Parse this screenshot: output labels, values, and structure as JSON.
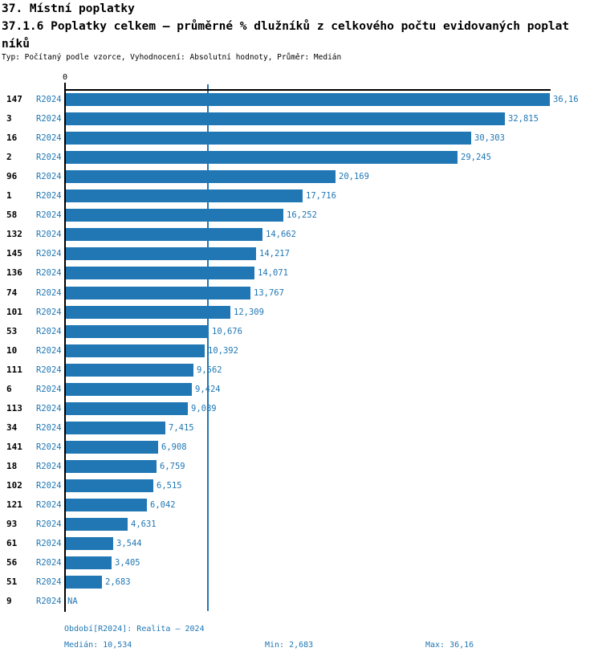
{
  "header": {
    "title_line1": "37. Místní poplatky",
    "title_line2": "37.1.6 Poplatky celkem – průměrné % dlužníků z celkového počtu evidovaných poplat",
    "title_line3": "níků",
    "subtitle": "Typ: Počítaný podle vzorce, Vyhodnocení: Absolutní hodnoty, Průměr: Medián"
  },
  "chart_data": {
    "type": "bar",
    "orientation": "horizontal",
    "title": "37.1.6 Poplatky celkem – průměrné % dlužníků z celkového počtu evidovaných poplatníků",
    "axis": {
      "origin_label": "0",
      "xmin": 0,
      "xmax": 36.16
    },
    "legend_position": "none",
    "grid": false,
    "rows": [
      {
        "category": "147",
        "period": "R2024",
        "value": 36.16,
        "value_label": "36,16"
      },
      {
        "category": "3",
        "period": "R2024",
        "value": 32.815,
        "value_label": "32,815"
      },
      {
        "category": "16",
        "period": "R2024",
        "value": 30.303,
        "value_label": "30,303"
      },
      {
        "category": "2",
        "period": "R2024",
        "value": 29.245,
        "value_label": "29,245"
      },
      {
        "category": "96",
        "period": "R2024",
        "value": 20.169,
        "value_label": "20,169"
      },
      {
        "category": "1",
        "period": "R2024",
        "value": 17.716,
        "value_label": "17,716"
      },
      {
        "category": "58",
        "period": "R2024",
        "value": 16.252,
        "value_label": "16,252"
      },
      {
        "category": "132",
        "period": "R2024",
        "value": 14.662,
        "value_label": "14,662"
      },
      {
        "category": "145",
        "period": "R2024",
        "value": 14.217,
        "value_label": "14,217"
      },
      {
        "category": "136",
        "period": "R2024",
        "value": 14.071,
        "value_label": "14,071"
      },
      {
        "category": "74",
        "period": "R2024",
        "value": 13.767,
        "value_label": "13,767"
      },
      {
        "category": "101",
        "period": "R2024",
        "value": 12.309,
        "value_label": "12,309"
      },
      {
        "category": "53",
        "period": "R2024",
        "value": 10.676,
        "value_label": "10,676"
      },
      {
        "category": "10",
        "period": "R2024",
        "value": 10.392,
        "value_label": "10,392"
      },
      {
        "category": "111",
        "period": "R2024",
        "value": 9.562,
        "value_label": "9,562"
      },
      {
        "category": "6",
        "period": "R2024",
        "value": 9.424,
        "value_label": "9,424"
      },
      {
        "category": "113",
        "period": "R2024",
        "value": 9.089,
        "value_label": "9,089"
      },
      {
        "category": "34",
        "period": "R2024",
        "value": 7.415,
        "value_label": "7,415"
      },
      {
        "category": "141",
        "period": "R2024",
        "value": 6.908,
        "value_label": "6,908"
      },
      {
        "category": "18",
        "period": "R2024",
        "value": 6.759,
        "value_label": "6,759"
      },
      {
        "category": "102",
        "period": "R2024",
        "value": 6.515,
        "value_label": "6,515"
      },
      {
        "category": "121",
        "period": "R2024",
        "value": 6.042,
        "value_label": "6,042"
      },
      {
        "category": "93",
        "period": "R2024",
        "value": 4.631,
        "value_label": "4,631"
      },
      {
        "category": "61",
        "period": "R2024",
        "value": 3.544,
        "value_label": "3,544"
      },
      {
        "category": "56",
        "period": "R2024",
        "value": 3.405,
        "value_label": "3,405"
      },
      {
        "category": "51",
        "period": "R2024",
        "value": 2.683,
        "value_label": "2,683"
      },
      {
        "category": "9",
        "period": "R2024",
        "value": null,
        "value_label": "NA"
      }
    ],
    "median_line": {
      "value": 10.534
    },
    "colors": {
      "bar": "#2077b4",
      "median_line": "#2077b4",
      "blue_text": "#2077b4",
      "axis": "#000000"
    }
  },
  "footer": {
    "period_info": "Období[R2024]: Realita – 2024",
    "median": "Medián: 10,534",
    "min": "Min: 2,683",
    "max": "Max: 36,16"
  }
}
